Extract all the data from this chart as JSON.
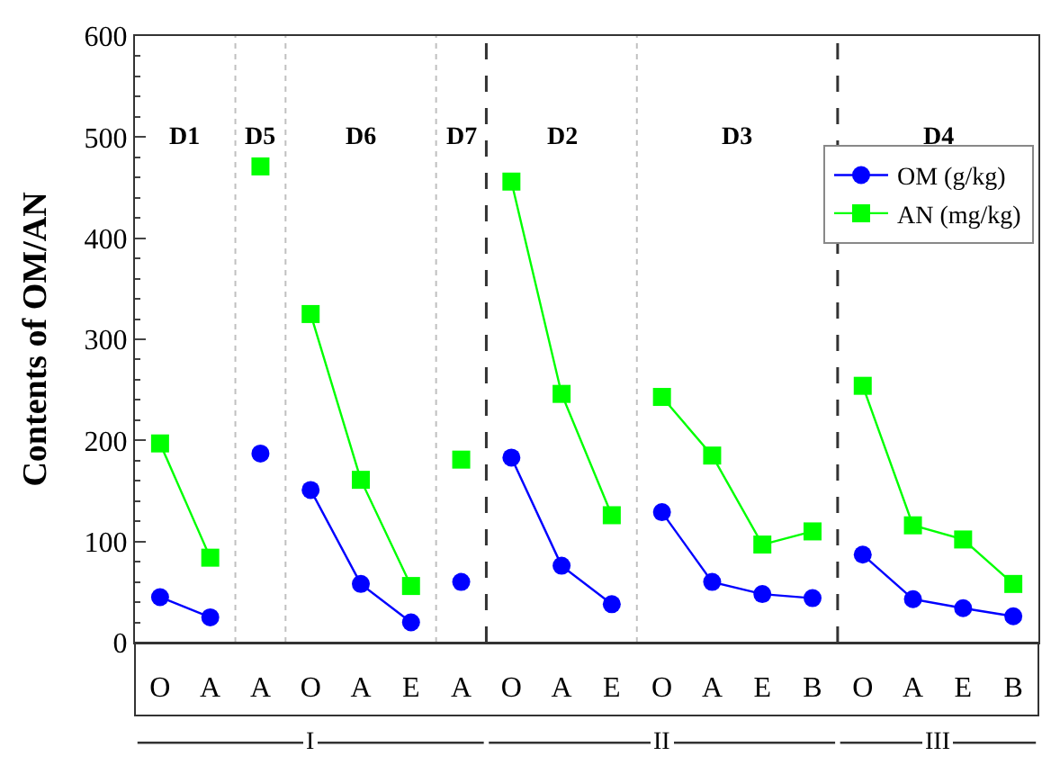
{
  "chart_data": {
    "type": "line",
    "ylabel": "Contents of OM/AN",
    "categories": [
      "O",
      "A",
      "A",
      "O",
      "A",
      "E",
      "A",
      "O",
      "A",
      "E",
      "O",
      "A",
      "E",
      "B",
      "O",
      "A",
      "E",
      "B"
    ],
    "series": [
      {
        "name": "OM (g/kg)",
        "color": "#0000ff",
        "marker": "circle",
        "values": [
          45,
          25,
          null,
          null,
          null,
          null,
          null,
          null,
          null,
          null,
          null,
          null,
          null,
          null,
          null,
          null,
          null,
          null
        ]
      },
      {
        "color": "#0000ff",
        "marker": "circle",
        "values": [
          null,
          null,
          187,
          null,
          null,
          null,
          null,
          null,
          null,
          null,
          null,
          null,
          null,
          null,
          null,
          null,
          null,
          null
        ]
      },
      {
        "color": "#0000ff",
        "marker": "circle",
        "values": [
          null,
          null,
          null,
          151,
          58,
          20,
          null,
          null,
          null,
          null,
          null,
          null,
          null,
          null,
          null,
          null,
          null,
          null
        ]
      },
      {
        "color": "#0000ff",
        "marker": "circle",
        "values": [
          null,
          null,
          null,
          null,
          null,
          null,
          60,
          null,
          null,
          null,
          null,
          null,
          null,
          null,
          null,
          null,
          null,
          null
        ]
      },
      {
        "color": "#0000ff",
        "marker": "circle",
        "values": [
          null,
          null,
          null,
          null,
          null,
          null,
          null,
          183,
          76,
          38,
          null,
          null,
          null,
          null,
          null,
          null,
          null,
          null
        ]
      },
      {
        "color": "#0000ff",
        "marker": "circle",
        "values": [
          null,
          null,
          null,
          null,
          null,
          null,
          null,
          null,
          null,
          null,
          129,
          60,
          48,
          44,
          null,
          null,
          null,
          null
        ]
      },
      {
        "color": "#0000ff",
        "marker": "circle",
        "values": [
          null,
          null,
          null,
          null,
          null,
          null,
          null,
          null,
          null,
          null,
          null,
          null,
          null,
          null,
          87,
          43,
          34,
          26
        ]
      },
      {
        "name": "AN (mg/kg)",
        "color": "#00ff00",
        "marker": "square",
        "values": [
          197,
          84,
          null,
          null,
          null,
          null,
          null,
          null,
          null,
          null,
          null,
          null,
          null,
          null,
          null,
          null,
          null,
          null
        ]
      },
      {
        "color": "#00ff00",
        "marker": "square",
        "values": [
          null,
          null,
          471,
          null,
          null,
          null,
          null,
          null,
          null,
          null,
          null,
          null,
          null,
          null,
          null,
          null,
          null,
          null
        ]
      },
      {
        "color": "#00ff00",
        "marker": "square",
        "values": [
          null,
          null,
          null,
          325,
          161,
          56,
          null,
          null,
          null,
          null,
          null,
          null,
          null,
          null,
          null,
          null,
          null,
          null
        ]
      },
      {
        "color": "#00ff00",
        "marker": "square",
        "values": [
          null,
          null,
          null,
          null,
          null,
          null,
          181,
          null,
          null,
          null,
          null,
          null,
          null,
          null,
          null,
          null,
          null,
          null
        ]
      },
      {
        "color": "#00ff00",
        "marker": "square",
        "values": [
          null,
          null,
          null,
          null,
          null,
          null,
          null,
          456,
          246,
          126,
          null,
          null,
          null,
          null,
          null,
          null,
          null,
          null
        ]
      },
      {
        "color": "#00ff00",
        "marker": "square",
        "values": [
          null,
          null,
          null,
          null,
          null,
          null,
          null,
          null,
          null,
          null,
          243,
          185,
          97,
          110,
          null,
          null,
          null,
          null
        ]
      },
      {
        "color": "#00ff00",
        "marker": "square",
        "values": [
          null,
          null,
          null,
          null,
          null,
          null,
          null,
          null,
          null,
          null,
          null,
          null,
          null,
          null,
          254,
          116,
          102,
          58
        ]
      }
    ],
    "ylim": [
      0,
      600
    ],
    "yticks": [
      0,
      100,
      200,
      300,
      400,
      500,
      600
    ],
    "annotations": [
      "D1",
      "D5",
      "D6",
      "D7",
      "D2",
      "D3",
      "D4",
      "I",
      "II",
      "III"
    ],
    "legend": "top right"
  }
}
